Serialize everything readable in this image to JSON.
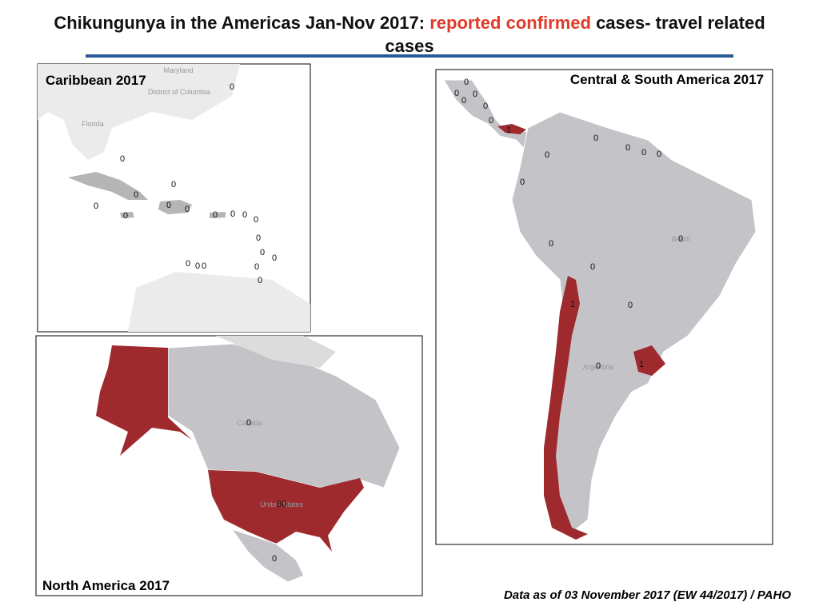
{
  "header": {
    "title_parts": [
      "Chikungunya in the Americas Jan-Nov 2017:",
      "reported confirmed",
      "cases- travel related",
      "cases"
    ]
  },
  "panels": [
    {
      "title": "Caribbean 2017",
      "basemap_labels": [
        "Maryland",
        "District of Columbia",
        "Florida"
      ],
      "case_labels": [
        0,
        0,
        0,
        0,
        0,
        0,
        0,
        0,
        0,
        0,
        0,
        0,
        0,
        0,
        0,
        0,
        0,
        0,
        0,
        0
      ]
    },
    {
      "title": "Central & South America  2017",
      "basemap_labels": [
        "Brazil",
        "Argentina"
      ],
      "case_labels": [
        0,
        0,
        0,
        0,
        0,
        0,
        1,
        0,
        0,
        0,
        0,
        0,
        0,
        0,
        0,
        0,
        1,
        0,
        0,
        1
      ]
    },
    {
      "title": "North America  2017",
      "basemap_labels": [
        "Canada",
        "United States"
      ],
      "case_labels": [
        0,
        80,
        0
      ]
    }
  ],
  "footnote": "Data as of 03 November 2017 (EW 44/2017) / PAHO"
}
